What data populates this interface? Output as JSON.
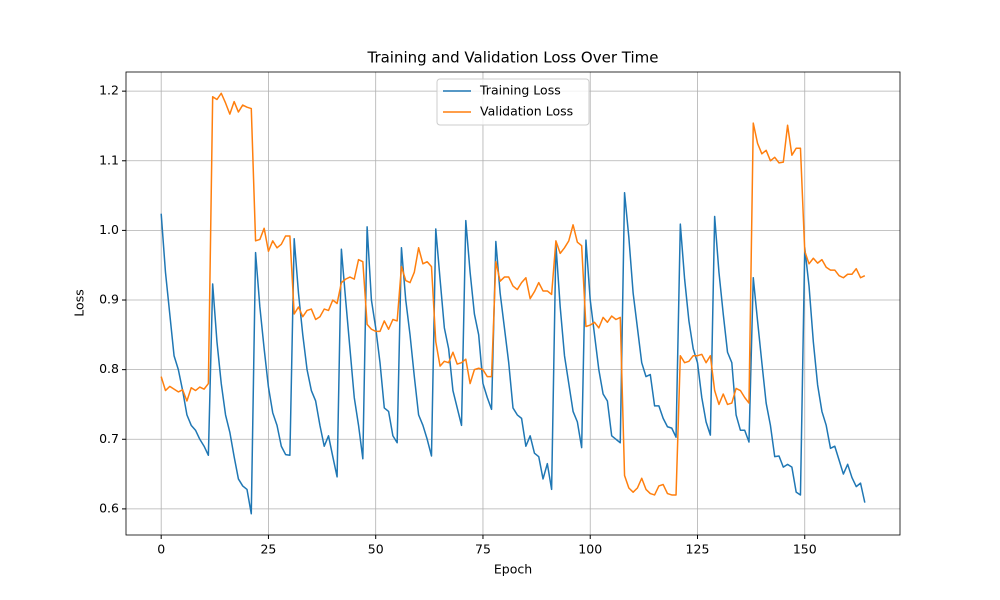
{
  "chart_data": {
    "type": "line",
    "title": "Training and Validation Loss Over Time",
    "xlabel": "Epoch",
    "ylabel": "Loss",
    "x": [
      0,
      1,
      2,
      3,
      4,
      5,
      6,
      7,
      8,
      9,
      10,
      11,
      12,
      13,
      14,
      15,
      16,
      17,
      18,
      19,
      20,
      21,
      22,
      23,
      24,
      25,
      26,
      27,
      28,
      29,
      30,
      31,
      32,
      33,
      34,
      35,
      36,
      37,
      38,
      39,
      40,
      41,
      42,
      43,
      44,
      45,
      46,
      47,
      48,
      49,
      50,
      51,
      52,
      53,
      54,
      55,
      56,
      57,
      58,
      59,
      60,
      61,
      62,
      63,
      64,
      65,
      66,
      67,
      68,
      69,
      70,
      71,
      72,
      73,
      74,
      75,
      76,
      77,
      78,
      79,
      80,
      81,
      82,
      83,
      84,
      85,
      86,
      87,
      88,
      89,
      90,
      91,
      92,
      93,
      94,
      95,
      96,
      97,
      98,
      99,
      100,
      101,
      102,
      103,
      104,
      105,
      106,
      107,
      108,
      109,
      110,
      111,
      112,
      113,
      114,
      115,
      116,
      117,
      118,
      119,
      120,
      121,
      122,
      123,
      124,
      125,
      126,
      127,
      128,
      129,
      130,
      131,
      132,
      133,
      134,
      135,
      136,
      137,
      138,
      139,
      140,
      141,
      142,
      143,
      144,
      145,
      146,
      147,
      148,
      149,
      150,
      151,
      152,
      153,
      154,
      155,
      156,
      157,
      158,
      159,
      160,
      161,
      162,
      163,
      164
    ],
    "series": [
      {
        "name": "Training Loss",
        "color": "#1f77b4",
        "values": [
          1.024,
          0.94,
          0.88,
          0.82,
          0.8,
          0.77,
          0.735,
          0.72,
          0.713,
          0.7,
          0.69,
          0.677,
          0.923,
          0.84,
          0.78,
          0.735,
          0.71,
          0.675,
          0.643,
          0.633,
          0.628,
          0.593,
          0.968,
          0.89,
          0.83,
          0.775,
          0.738,
          0.72,
          0.69,
          0.678,
          0.677,
          0.988,
          0.91,
          0.85,
          0.8,
          0.77,
          0.755,
          0.72,
          0.69,
          0.705,
          0.675,
          0.646,
          0.973,
          0.9,
          0.83,
          0.76,
          0.72,
          0.672,
          1.005,
          0.9,
          0.86,
          0.81,
          0.745,
          0.74,
          0.705,
          0.695,
          0.975,
          0.9,
          0.85,
          0.79,
          0.735,
          0.72,
          0.7,
          0.676,
          1.002,
          0.93,
          0.86,
          0.83,
          0.77,
          0.745,
          0.72,
          1.014,
          0.94,
          0.88,
          0.85,
          0.78,
          0.76,
          0.743,
          0.984,
          0.91,
          0.86,
          0.81,
          0.745,
          0.735,
          0.73,
          0.69,
          0.705,
          0.68,
          0.675,
          0.643,
          0.665,
          0.628,
          0.98,
          0.89,
          0.82,
          0.78,
          0.74,
          0.725,
          0.688,
          0.986,
          0.9,
          0.85,
          0.8,
          0.765,
          0.755,
          0.705,
          0.7,
          0.695,
          1.054,
          0.99,
          0.91,
          0.86,
          0.81,
          0.79,
          0.793,
          0.748,
          0.748,
          0.73,
          0.718,
          0.716,
          0.703,
          1.009,
          0.93,
          0.87,
          0.83,
          0.81,
          0.76,
          0.725,
          0.706,
          1.02,
          0.94,
          0.88,
          0.825,
          0.81,
          0.735,
          0.713,
          0.713,
          0.696,
          0.932,
          0.87,
          0.81,
          0.752,
          0.72,
          0.675,
          0.676,
          0.66,
          0.664,
          0.66,
          0.624,
          0.62,
          0.975,
          0.92,
          0.84,
          0.778,
          0.74,
          0.72,
          0.687,
          0.69,
          0.67,
          0.65,
          0.664,
          0.645,
          0.632,
          0.637,
          0.609
        ]
      },
      {
        "name": "Validation Loss",
        "color": "#ff7f0e",
        "values": [
          0.79,
          0.77,
          0.776,
          0.772,
          0.768,
          0.771,
          0.755,
          0.774,
          0.77,
          0.775,
          0.772,
          0.78,
          1.192,
          1.188,
          1.197,
          1.183,
          1.167,
          1.185,
          1.17,
          1.18,
          1.177,
          1.175,
          0.985,
          0.987,
          1.003,
          0.97,
          0.985,
          0.975,
          0.98,
          0.992,
          0.992,
          0.88,
          0.89,
          0.876,
          0.885,
          0.887,
          0.872,
          0.876,
          0.887,
          0.885,
          0.9,
          0.895,
          0.925,
          0.93,
          0.933,
          0.93,
          0.958,
          0.955,
          0.865,
          0.858,
          0.855,
          0.855,
          0.87,
          0.858,
          0.872,
          0.87,
          0.948,
          0.928,
          0.925,
          0.94,
          0.975,
          0.952,
          0.955,
          0.948,
          0.84,
          0.805,
          0.812,
          0.81,
          0.825,
          0.808,
          0.81,
          0.815,
          0.78,
          0.8,
          0.802,
          0.8,
          0.79,
          0.79,
          0.955,
          0.927,
          0.933,
          0.933,
          0.92,
          0.915,
          0.925,
          0.932,
          0.902,
          0.912,
          0.925,
          0.913,
          0.913,
          0.908,
          0.985,
          0.967,
          0.975,
          0.985,
          1.008,
          0.983,
          0.978,
          0.862,
          0.864,
          0.868,
          0.86,
          0.875,
          0.868,
          0.877,
          0.872,
          0.875,
          0.648,
          0.63,
          0.624,
          0.63,
          0.644,
          0.628,
          0.622,
          0.62,
          0.633,
          0.635,
          0.622,
          0.62,
          0.62,
          0.82,
          0.81,
          0.812,
          0.82,
          0.82,
          0.822,
          0.81,
          0.82,
          0.77,
          0.75,
          0.765,
          0.75,
          0.752,
          0.773,
          0.77,
          0.76,
          0.752,
          1.154,
          1.125,
          1.11,
          1.115,
          1.1,
          1.105,
          1.097,
          1.098,
          1.151,
          1.108,
          1.118,
          1.118,
          0.97,
          0.952,
          0.96,
          0.953,
          0.958,
          0.947,
          0.943,
          0.943,
          0.935,
          0.932,
          0.937,
          0.937,
          0.945,
          0.932,
          0.935
        ]
      }
    ],
    "xlim": [
      -8.2,
      172.2
    ],
    "ylim": [
      0.5625,
      1.2275
    ],
    "xticks": [
      0,
      25,
      50,
      75,
      100,
      125,
      150
    ],
    "yticks": [
      0.6,
      0.7,
      0.8,
      0.9,
      {
        "value": 1.0,
        "label": "1.0"
      },
      1.1,
      1.2
    ],
    "grid": true,
    "legend": "upper center"
  }
}
